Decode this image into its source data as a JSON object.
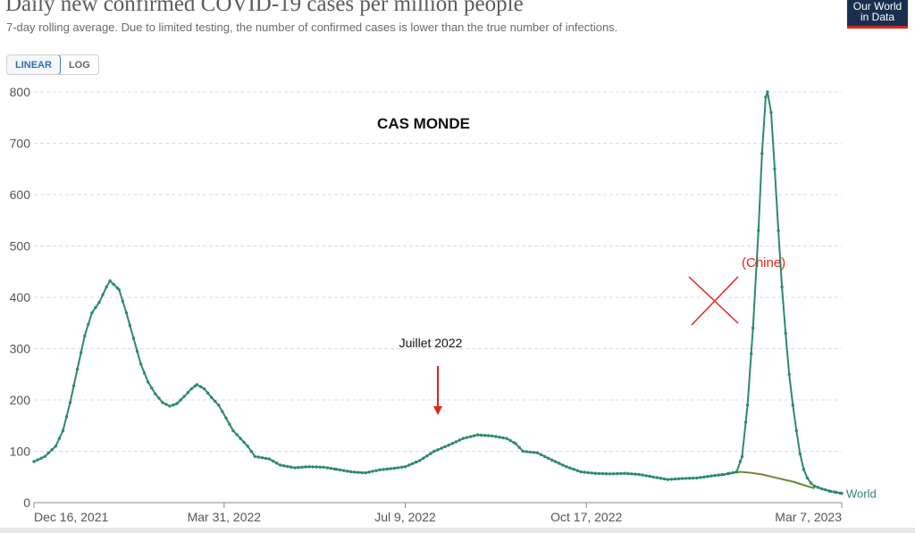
{
  "header": {
    "title": "Daily new confirmed COVID-19 cases per million people",
    "subtitle": "7-day rolling average. Due to limited testing, the number of confirmed cases is lower than the true number of infections.",
    "logo_line1": "Our World",
    "logo_line2": "in Data"
  },
  "toggle": {
    "linear_label": "LINEAR",
    "log_label": "LOG",
    "selected": "LINEAR"
  },
  "annotations": {
    "heading": "CAS MONDE",
    "july": "Juillet 2022",
    "china": "(Chine)"
  },
  "colors": {
    "world": "#2e8a68",
    "without_china": "#6b8a2f",
    "annotation": "#e0241c",
    "grid": "#dcdcdc"
  },
  "chart_data": {
    "type": "line",
    "title": "Daily new confirmed COVID-19 cases per million people",
    "subtitle": "7-day rolling average. Due to limited testing, the number of confirmed cases is lower than the true number of infections.",
    "xlabel": "",
    "ylabel": "",
    "ylim": [
      0,
      800
    ],
    "y_ticks": [
      0,
      100,
      200,
      300,
      400,
      500,
      600,
      700,
      800
    ],
    "x_range": [
      "2021-12-16",
      "2023-03-07"
    ],
    "x_ticks": [
      {
        "date": "2021-12-16",
        "label": "Dec 16, 2021"
      },
      {
        "date": "2022-03-31",
        "label": "Mar 31, 2022"
      },
      {
        "date": "2022-07-09",
        "label": "Jul 9, 2022"
      },
      {
        "date": "2022-10-17",
        "label": "Oct 17, 2022"
      },
      {
        "date": "2023-03-07",
        "label": "Mar 7, 2023"
      }
    ],
    "grid": true,
    "series": [
      {
        "name": "World",
        "markers": true,
        "points": [
          [
            "2021-12-16",
            80
          ],
          [
            "2021-12-22",
            90
          ],
          [
            "2021-12-28",
            110
          ],
          [
            "2022-01-01",
            140
          ],
          [
            "2022-01-05",
            195
          ],
          [
            "2022-01-09",
            260
          ],
          [
            "2022-01-13",
            325
          ],
          [
            "2022-01-17",
            370
          ],
          [
            "2022-01-21",
            390
          ],
          [
            "2022-01-25",
            420
          ],
          [
            "2022-01-27",
            432
          ],
          [
            "2022-02-01",
            415
          ],
          [
            "2022-02-05",
            370
          ],
          [
            "2022-02-09",
            320
          ],
          [
            "2022-02-13",
            270
          ],
          [
            "2022-02-17",
            235
          ],
          [
            "2022-02-21",
            212
          ],
          [
            "2022-02-25",
            195
          ],
          [
            "2022-03-01",
            188
          ],
          [
            "2022-03-05",
            193
          ],
          [
            "2022-03-09",
            207
          ],
          [
            "2022-03-13",
            222
          ],
          [
            "2022-03-16",
            230
          ],
          [
            "2022-03-20",
            222
          ],
          [
            "2022-03-24",
            205
          ],
          [
            "2022-03-28",
            190
          ],
          [
            "2022-04-01",
            165
          ],
          [
            "2022-04-05",
            140
          ],
          [
            "2022-04-09",
            125
          ],
          [
            "2022-04-13",
            110
          ],
          [
            "2022-04-17",
            90
          ],
          [
            "2022-04-25",
            85
          ],
          [
            "2022-05-01",
            73
          ],
          [
            "2022-05-09",
            68
          ],
          [
            "2022-05-17",
            70
          ],
          [
            "2022-05-25",
            69
          ],
          [
            "2022-06-01",
            65
          ],
          [
            "2022-06-09",
            60
          ],
          [
            "2022-06-17",
            58
          ],
          [
            "2022-06-25",
            64
          ],
          [
            "2022-07-03",
            67
          ],
          [
            "2022-07-09",
            70
          ],
          [
            "2022-07-17",
            82
          ],
          [
            "2022-07-25",
            100
          ],
          [
            "2022-08-02",
            112
          ],
          [
            "2022-08-10",
            125
          ],
          [
            "2022-08-18",
            132
          ],
          [
            "2022-08-26",
            130
          ],
          [
            "2022-09-03",
            125
          ],
          [
            "2022-09-08",
            115
          ],
          [
            "2022-09-12",
            100
          ],
          [
            "2022-09-20",
            97
          ],
          [
            "2022-09-28",
            83
          ],
          [
            "2022-10-06",
            70
          ],
          [
            "2022-10-14",
            60
          ],
          [
            "2022-10-22",
            57
          ],
          [
            "2022-10-30",
            56
          ],
          [
            "2022-11-07",
            57
          ],
          [
            "2022-11-15",
            55
          ],
          [
            "2022-11-23",
            50
          ],
          [
            "2022-12-01",
            45
          ],
          [
            "2022-12-09",
            47
          ],
          [
            "2022-12-17",
            48
          ],
          [
            "2022-12-25",
            52
          ],
          [
            "2023-01-01",
            55
          ],
          [
            "2023-01-04",
            57
          ],
          [
            "2023-01-08",
            60
          ],
          [
            "2023-01-11",
            90
          ],
          [
            "2023-01-14",
            190
          ],
          [
            "2023-01-17",
            340
          ],
          [
            "2023-01-20",
            530
          ],
          [
            "2023-01-22",
            680
          ],
          [
            "2023-01-24",
            790
          ],
          [
            "2023-01-25",
            800
          ],
          [
            "2023-01-27",
            760
          ],
          [
            "2023-01-29",
            650
          ],
          [
            "2023-01-31",
            530
          ],
          [
            "2023-02-02",
            420
          ],
          [
            "2023-02-04",
            330
          ],
          [
            "2023-02-06",
            250
          ],
          [
            "2023-02-08",
            190
          ],
          [
            "2023-02-10",
            140
          ],
          [
            "2023-02-12",
            95
          ],
          [
            "2023-02-14",
            65
          ],
          [
            "2023-02-16",
            48
          ],
          [
            "2023-02-18",
            38
          ],
          [
            "2023-02-20",
            32
          ],
          [
            "2023-02-24",
            27
          ],
          [
            "2023-03-01",
            22
          ],
          [
            "2023-03-04",
            20
          ],
          [
            "2023-03-07",
            18
          ]
        ]
      },
      {
        "name": "",
        "markers": false,
        "points": [
          [
            "2023-01-04",
            57
          ],
          [
            "2023-01-10",
            60
          ],
          [
            "2023-01-16",
            58
          ],
          [
            "2023-01-22",
            55
          ],
          [
            "2023-01-28",
            50
          ],
          [
            "2023-02-03",
            45
          ],
          [
            "2023-02-09",
            40
          ],
          [
            "2023-02-15",
            33
          ],
          [
            "2023-02-20",
            28
          ]
        ]
      }
    ]
  }
}
